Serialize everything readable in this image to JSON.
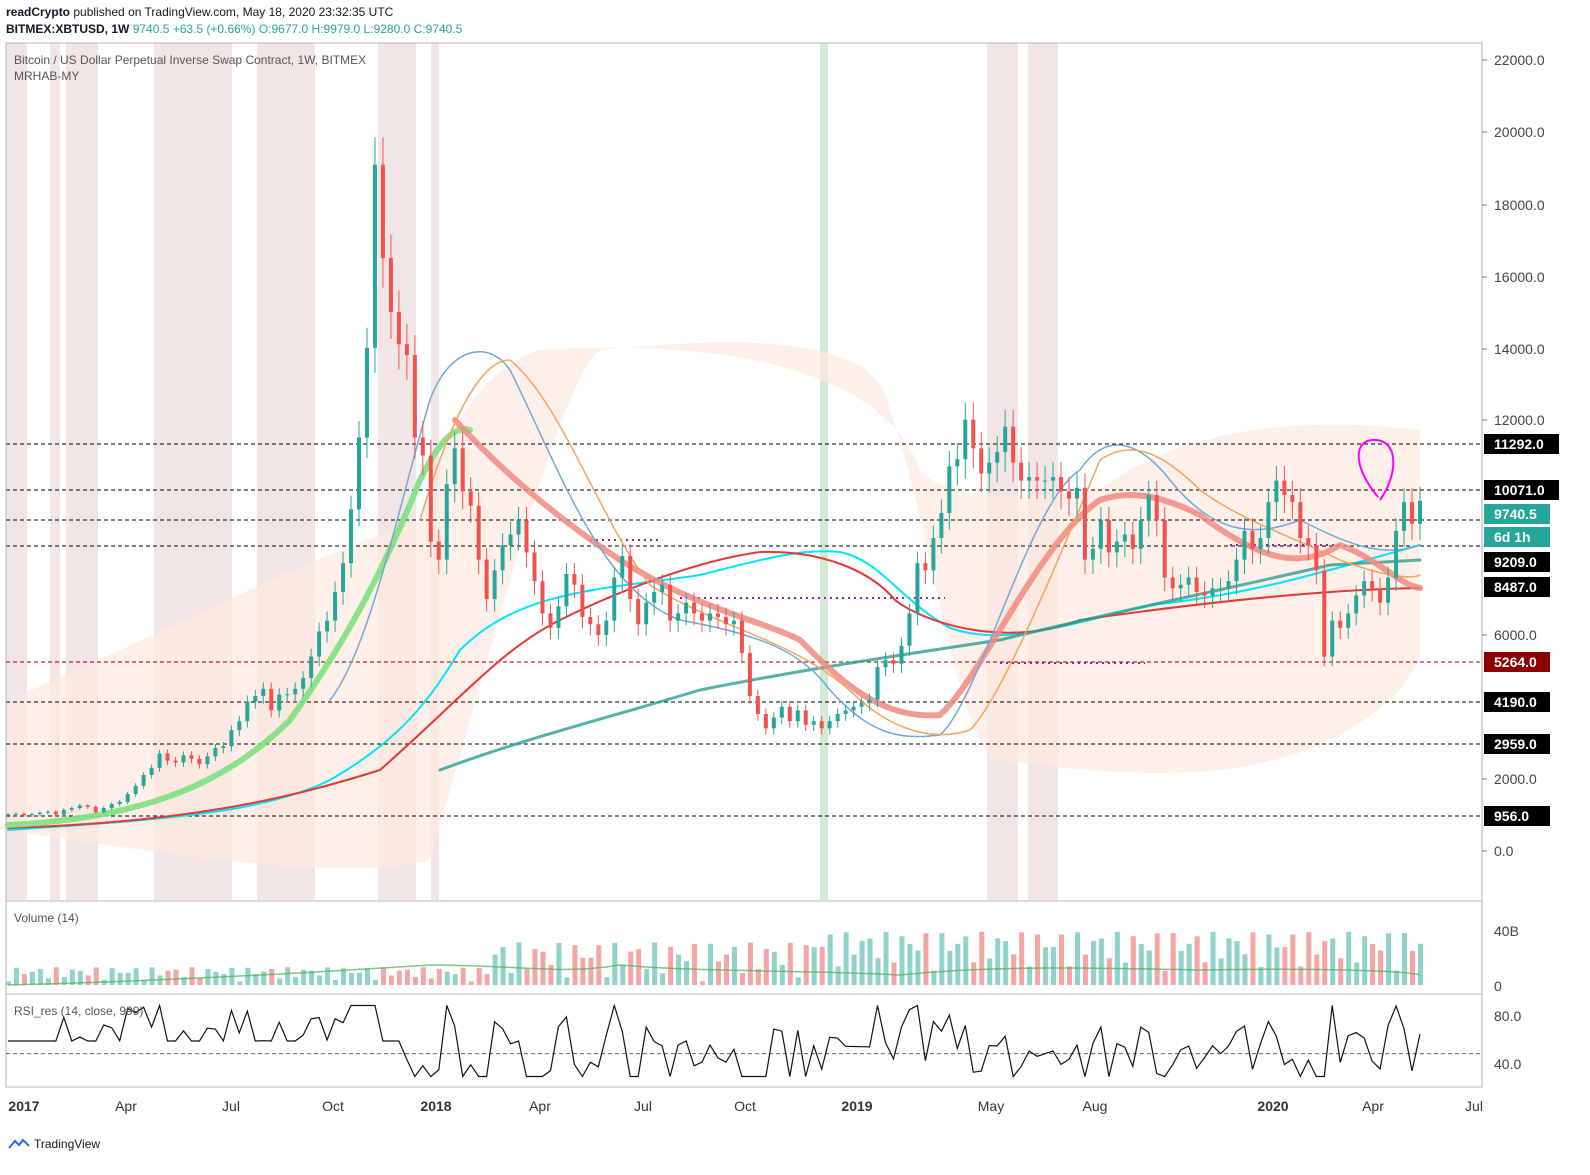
{
  "header": {
    "author": "readCrypto",
    "published_text": "published on TradingView.com, May 18, 2020 23:32:35 UTC",
    "symbol": "BITMEX:XBTUSD, 1W",
    "last": "9740.5",
    "change": "+63.5 (+0.66%)",
    "ohlc": "O:9677.0 H:9979.0 L:9280.0 C:9740.5"
  },
  "main_pane": {
    "title": "Bitcoin / US Dollar Perpetual Inverse Swap Contract, 1W, BITMEX",
    "indicator": "MRHAB-MY"
  },
  "volume_pane": {
    "title": "Volume (14)",
    "ticks": [
      "40B",
      "0"
    ]
  },
  "rsi_pane": {
    "title": "RSI_res (14, close, 999)",
    "ticks": [
      "80.0",
      "40.0"
    ]
  },
  "x_axis_labels": [
    "2017",
    "Apr",
    "Jul",
    "Oct",
    "2018",
    "Apr",
    "Jul",
    "Oct",
    "2019",
    "May",
    "Aug",
    "2020",
    "Apr",
    "Jul"
  ],
  "footer": {
    "brand": "TradingView"
  },
  "colors": {
    "up": "#26a69a",
    "down": "#ef5350",
    "cyan_ma": "#00e5ff",
    "red_ma": "#e53935",
    "green_ribbon": "#7ee07e",
    "salmon_ribbon": "#f08a80",
    "orange_ma": "#f7a35c",
    "blue_ma": "#6fa8dc",
    "band_fill": "#fde9df",
    "magenta_mark": "#ff00ff"
  },
  "chart_data": {
    "type": "candlestick",
    "title": "Bitcoin / US Dollar Perpetual Inverse Swap Contract, 1W, BITMEX",
    "y_tick_labels": [
      "22000.0",
      "20000.0",
      "18000.0",
      "16000.0",
      "14000.0",
      "12000.0",
      "6000.0",
      "2000.0",
      "0.0"
    ],
    "price_levels": [
      {
        "value": "11292.0",
        "bg": "#000000",
        "fg": "#ffffff"
      },
      {
        "value": "10071.0",
        "bg": "#000000",
        "fg": "#ffffff"
      },
      {
        "value": "9740.5",
        "bg": "#26a69a",
        "fg": "#ffffff"
      },
      {
        "value": "6d 1h",
        "bg": "#26a69a",
        "fg": "#ffffff"
      },
      {
        "value": "9209.0",
        "bg": "#000000",
        "fg": "#ffffff"
      },
      {
        "value": "8487.0",
        "bg": "#000000",
        "fg": "#ffffff"
      },
      {
        "value": "5264.0",
        "bg": "#8b0000",
        "fg": "#ffffff"
      },
      {
        "value": "4190.0",
        "bg": "#000000",
        "fg": "#ffffff"
      },
      {
        "value": "2959.0",
        "bg": "#000000",
        "fg": "#ffffff"
      },
      {
        "value": "956.0",
        "bg": "#000000",
        "fg": "#ffffff"
      }
    ],
    "weekly_closes": [
      1000,
      1020,
      980,
      1010,
      1050,
      1080,
      1000,
      1130,
      1180,
      1250,
      1210,
      1070,
      1180,
      1290,
      1350,
      1570,
      1800,
      2100,
      2300,
      2700,
      2500,
      2450,
      2650,
      2550,
      2400,
      2620,
      2850,
      2900,
      3350,
      3600,
      4150,
      4300,
      4500,
      3900,
      4340,
      4350,
      4500,
      4800,
      5400,
      6100,
      6400,
      7200,
      8000,
      9500,
      11500,
      14000,
      19100,
      16500,
      15000,
      14100,
      13800,
      11500,
      11000,
      8600,
      8100,
      10200,
      11200,
      10000,
      9600,
      8100,
      7000,
      7800,
      8500,
      8800,
      9200,
      8300,
      7500,
      6600,
      6200,
      6800,
      7700,
      7400,
      6500,
      6300,
      6000,
      6400,
      7600,
      8200,
      7000,
      6300,
      6900,
      7200,
      7400,
      6400,
      6600,
      6900,
      6600,
      6400,
      6600,
      6500,
      6300,
      6400,
      5500,
      4300,
      3800,
      3400,
      3700,
      4000,
      3600,
      3900,
      3500,
      3600,
      3400,
      3600,
      3800,
      3900,
      4000,
      4100,
      4200,
      5100,
      5300,
      5200,
      5700,
      6600,
      8000,
      7800,
      8700,
      9400,
      10700,
      10900,
      12000,
      11200,
      10500,
      10800,
      11100,
      11800,
      10800,
      10300,
      10400,
      10300,
      10300,
      10400,
      10000,
      9800,
      10100,
      8100,
      8400,
      9200,
      8300,
      8600,
      8800,
      8400,
      9200,
      9900,
      9200,
      7600,
      7300,
      7400,
      7600,
      7200,
      7100,
      7300,
      7300,
      7500,
      8100,
      8900,
      8400,
      8700,
      9700,
      10300,
      9900,
      9700,
      8700,
      8500,
      7800,
      5400,
      6400,
      6200,
      6600,
      7100,
      7500,
      7300,
      6900,
      7600,
      8900,
      9700,
      9100,
      9740.5
    ],
    "volume_period": 14,
    "rsi_params": "14, close, 999",
    "volume_ylim": [
      0,
      40
    ],
    "rsi_ylim": [
      30,
      90
    ]
  }
}
